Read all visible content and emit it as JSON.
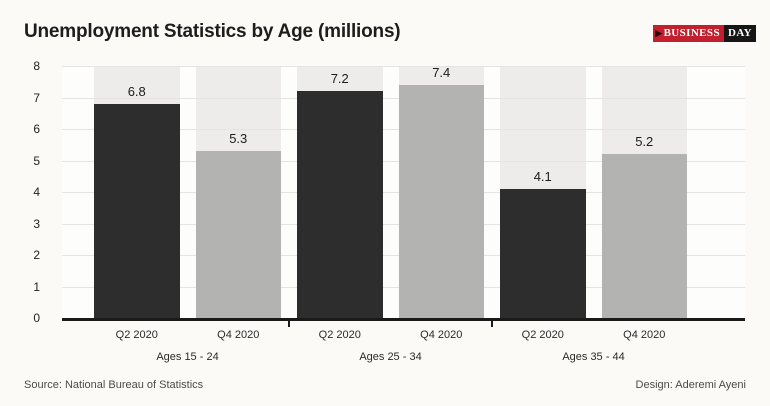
{
  "header": {
    "title": "Unemployment Statistics by Age (millions)"
  },
  "logo": {
    "business": "BUSINESS",
    "day": "DAY",
    "arrow_icon": "play-arrow-icon",
    "red": "#c2202e",
    "black": "#161616"
  },
  "chart_data": {
    "type": "bar",
    "title": "Unemployment Statistics by Age (millions)",
    "categories": [
      "Ages 15 - 24",
      "Ages 25 - 34",
      "Ages 35 - 44"
    ],
    "series": [
      {
        "name": "Q2 2020",
        "values": [
          6.8,
          7.2,
          4.1
        ],
        "color": "#2d2d2d"
      },
      {
        "name": "Q4 2020",
        "values": [
          5.3,
          7.4,
          5.2
        ],
        "color": "#b3b3b2"
      }
    ],
    "ylim": [
      0,
      8
    ],
    "yticks": [
      0,
      1,
      2,
      3,
      4,
      5,
      6,
      7,
      8
    ],
    "grid": true,
    "legend_position": "none",
    "track_color": "#edecea",
    "value_labels": true,
    "xlabel": "",
    "ylabel": ""
  },
  "footer": {
    "source": "Source: National Bureau of Statistics",
    "design": "Design: Aderemi Ayeni"
  }
}
